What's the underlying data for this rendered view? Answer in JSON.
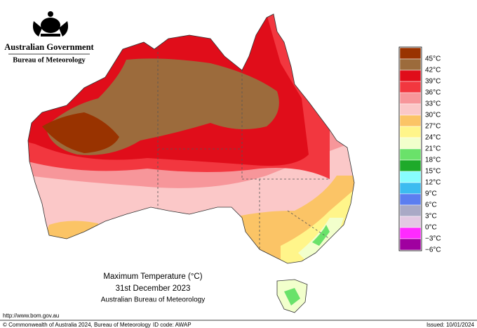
{
  "header": {
    "agency": "Australian Government",
    "bureau": "Bureau of Meteorology"
  },
  "legend": [
    {
      "label": "45°C",
      "color": "#993300"
    },
    {
      "label": "42°C",
      "color": "#9c6b3c"
    },
    {
      "label": "39°C",
      "color": "#e00d1a"
    },
    {
      "label": "36°C",
      "color": "#f2373f"
    },
    {
      "label": "33°C",
      "color": "#f7969a"
    },
    {
      "label": "30°C",
      "color": "#fbc8c8"
    },
    {
      "label": "27°C",
      "color": "#fbc466"
    },
    {
      "label": "24°C",
      "color": "#fff58a"
    },
    {
      "label": "21°C",
      "color": "#f2ffcc"
    },
    {
      "label": "18°C",
      "color": "#6ae26a"
    },
    {
      "label": "15°C",
      "color": "#1eaa2a"
    },
    {
      "label": "12°C",
      "color": "#88fdfd"
    },
    {
      "label": "9°C",
      "color": "#3cbcf0"
    },
    {
      "label": "6°C",
      "color": "#5c7ef0"
    },
    {
      "label": "3°C",
      "color": "#a9a9c6"
    },
    {
      "label": "0°C",
      "color": "#e3c8e3"
    },
    {
      "label": "−3°C",
      "color": "#ff2aff"
    },
    {
      "label": "−6°C",
      "color": "#a000a0"
    }
  ],
  "map_title": {
    "line1": "Maximum Temperature (°C)",
    "line2": "31st December 2023",
    "line3": "Australian Bureau of Meteorology"
  },
  "footer": {
    "url": "http://www.bom.gov.au",
    "copyright": "© Commonwealth of Australia 2024, Bureau of Meteorology",
    "id_code": "ID code: AWAP",
    "issued": "Issued: 10/01/2024"
  }
}
